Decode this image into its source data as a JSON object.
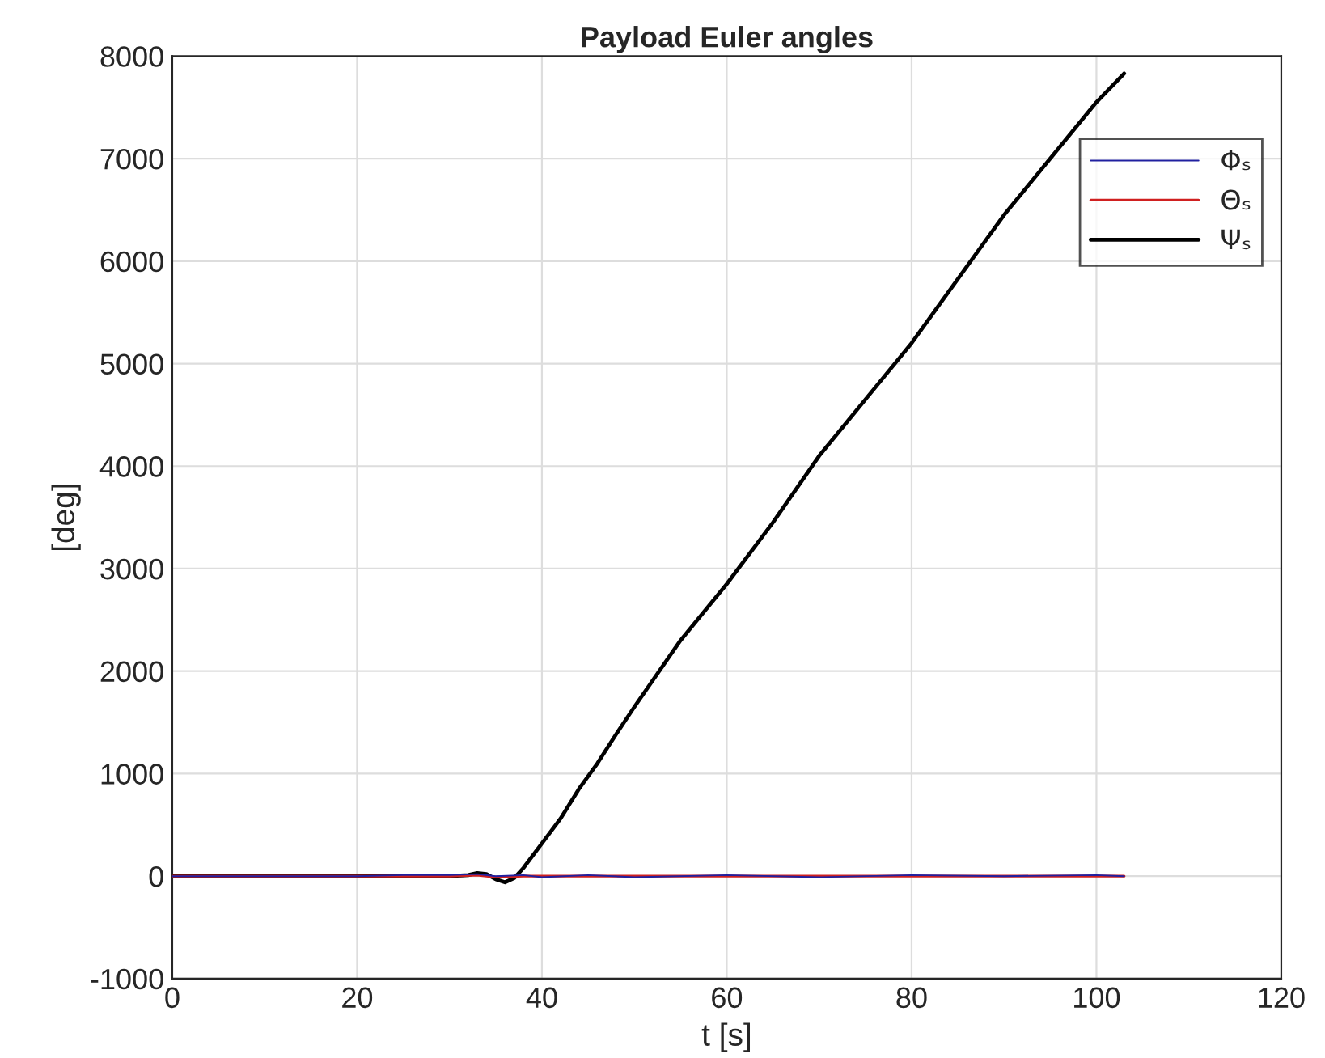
{
  "chart_data": {
    "type": "line",
    "title": "Payload Euler angles",
    "xlabel": "t [s]",
    "ylabel": "[deg]",
    "xlim": [
      0,
      120
    ],
    "xticks": [
      0,
      20,
      40,
      60,
      80,
      100,
      120
    ],
    "ylim": [
      -1000,
      8000
    ],
    "yticks": [
      -1000,
      0,
      1000,
      2000,
      3000,
      4000,
      5000,
      6000,
      7000,
      8000
    ],
    "grid": true,
    "legend": "top right",
    "line_style": "solid",
    "marker": "none",
    "series": [
      {
        "name": "Φₛ",
        "color": "#2020a0",
        "x": [
          0,
          10,
          20,
          25,
          30,
          33,
          35,
          38,
          40,
          45,
          50,
          60,
          70,
          80,
          90,
          100,
          103
        ],
        "values": [
          0,
          0,
          0,
          10,
          10,
          20,
          0,
          10,
          -10,
          10,
          -10,
          10,
          -10,
          10,
          0,
          10,
          0
        ]
      },
      {
        "name": "Θₛ",
        "color": "#d02020",
        "x": [
          0,
          10,
          20,
          30,
          33,
          35,
          38,
          40,
          50,
          60,
          70,
          80,
          90,
          100,
          103
        ],
        "values": [
          0,
          0,
          0,
          0,
          10,
          -10,
          0,
          0,
          0,
          0,
          0,
          0,
          0,
          0,
          0
        ]
      },
      {
        "name": "Ψₛ",
        "color": "#000000",
        "x": [
          0,
          10,
          20,
          30,
          32,
          33,
          34,
          35,
          36,
          37,
          38,
          40,
          42,
          44,
          46,
          48,
          50,
          55,
          60,
          65,
          70,
          75,
          80,
          86,
          90,
          95,
          100,
          103
        ],
        "values": [
          0,
          0,
          0,
          0,
          10,
          30,
          20,
          -30,
          -60,
          -20,
          80,
          320,
          560,
          850,
          1100,
          1380,
          1650,
          2300,
          2850,
          3450,
          4100,
          4650,
          5200,
          5950,
          6450,
          7000,
          7550,
          7830
        ]
      }
    ]
  }
}
